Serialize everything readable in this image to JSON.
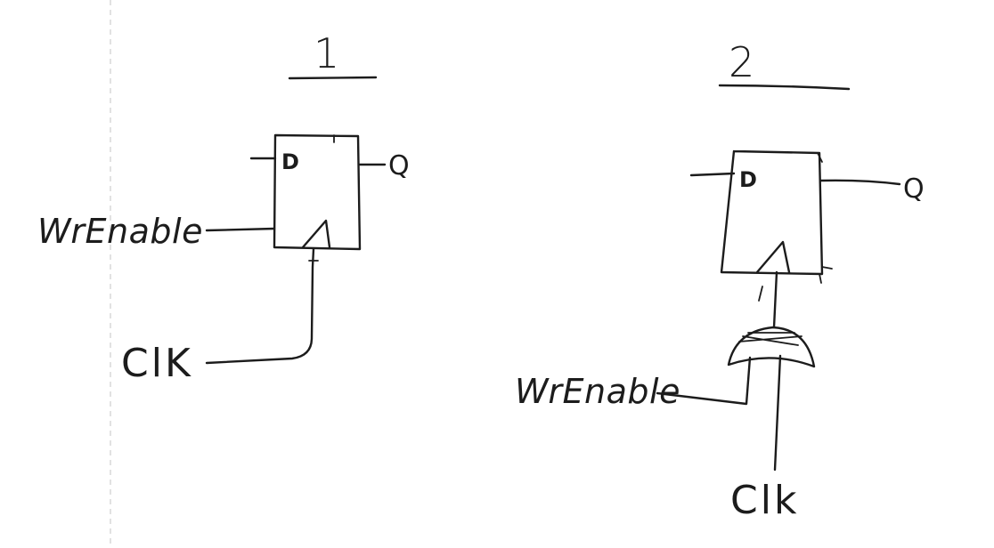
{
  "diagram_1": {
    "number": "1",
    "d_label": "D",
    "q_label": "Q",
    "enable_label": "WrEnable",
    "clock_label": "ClK"
  },
  "diagram_2": {
    "number": "2",
    "d_label": "D",
    "q_label": "Q",
    "enable_label": "WrEnable",
    "clock_label": "Clk"
  },
  "colors": {
    "ink": "#1c1c1c",
    "paper": "#ffffff"
  }
}
